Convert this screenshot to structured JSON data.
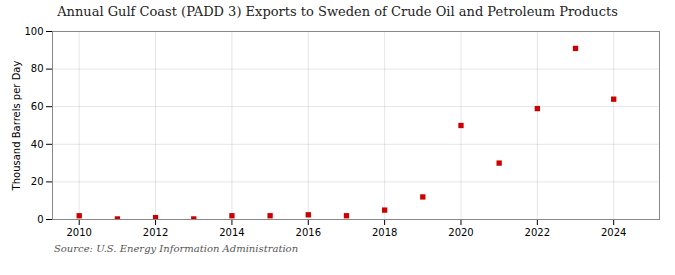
{
  "chart_data": {
    "type": "scatter",
    "title": "Annual Gulf Coast (PADD 3) Exports to Sweden of Crude Oil and Petroleum Products",
    "ylabel": "Thousand Barrels per Day",
    "source": "Source: U.S. Energy Information Administration",
    "x": [
      2010,
      2011,
      2012,
      2013,
      2014,
      2015,
      2016,
      2017,
      2018,
      2019,
      2020,
      2021,
      2022,
      2023,
      2024
    ],
    "values": [
      2.0,
      0.3,
      1.0,
      0.3,
      2.0,
      2.0,
      2.5,
      2.0,
      5.0,
      12.0,
      50.0,
      30.0,
      59.0,
      91.0,
      64.0
    ],
    "color": "#cc0000",
    "marker": "square",
    "xlim": [
      2009.3,
      2025.2
    ],
    "ylim": [
      0,
      100
    ],
    "xticks": [
      2010,
      2012,
      2014,
      2016,
      2018,
      2020,
      2022,
      2024
    ],
    "yticks": [
      0,
      20,
      40,
      60,
      80,
      100
    ],
    "grid": true
  }
}
